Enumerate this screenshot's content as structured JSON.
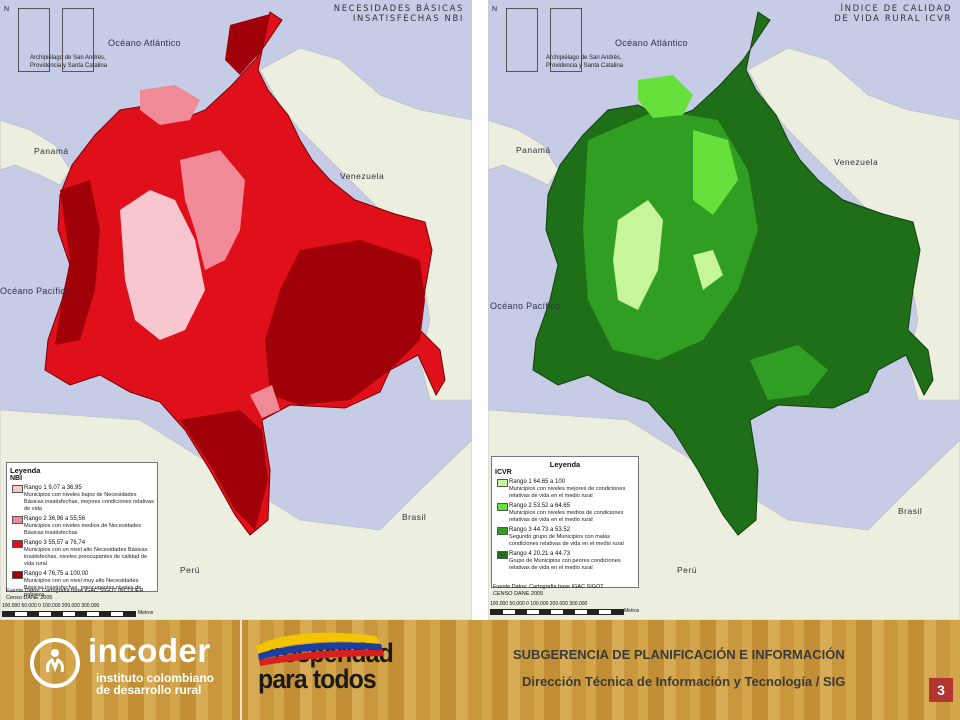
{
  "maps": [
    {
      "id": "nbi",
      "title": "NECESIDADES BÁSICAS\nINSATISFECHAS NBI",
      "inset_caption": "Archipiélago de San Andrés,\nProvidencia y Santa Catalina",
      "ocean_atlantic": "Océano Atlántico",
      "ocean_pacific": "Océano Pacífico",
      "country_panama": "Panamá",
      "country_venezuela": "Venezuela",
      "country_brasil": "Brasil",
      "country_peru": "Perú",
      "north_symbol": "N",
      "legend": {
        "title": "Leyenda",
        "subtitle": "NBI",
        "items": [
          {
            "range": "Rango 1  9,07 a 36,95",
            "desc": "Municipios con niveles bajos de Necesidades Básicas insatisfechas, mejores condiciones relativas de vida",
            "color": "#f7c6ce"
          },
          {
            "range": "Rango 2  36,96 a 55,56",
            "desc": "Municipios con niveles medios de Necesidades Básicas insatisfechas",
            "color": "#f08a96"
          },
          {
            "range": "Rango 3  55,57 a 76,74",
            "desc": "Municipios con un nivel alto Necesidades Básicas insatisfechas, niveles preocupantes de calidad de vida rural",
            "color": "#e0101a"
          },
          {
            "range": "Rango 4  76,75 a 100,00",
            "desc": "Municipios con un nivel muy alto Necesidades Básicas insatisfechas,  preocupantes niveles de pobreza",
            "color": "#a00008"
          }
        ]
      },
      "source": "Fuente Datos: Cartografía base IGAC SIGOT INCODER\nCenso DANE 2005",
      "scale_ticks": "100.000  50.000     0          100.000        200.000           300.000",
      "scale_units": "Metros",
      "palette": {
        "light": "#f7c6ce",
        "mid": "#f08a96",
        "high": "#e0101a",
        "dark": "#a00008"
      }
    },
    {
      "id": "icvr",
      "title": "ÍNDICE DE CALIDAD\nDE VIDA RURAL ICVR",
      "inset_caption": "Archipiélago de San Andrés,\nProvidencia y Santa Catalina",
      "ocean_atlantic": "Océano Atlántico",
      "ocean_pacific": "Océano Pacífico",
      "country_panama": "Panamá",
      "country_venezuela": "Venezuela",
      "country_brasil": "Brasil",
      "country_peru": "Perú",
      "north_symbol": "N",
      "legend": {
        "title": "Leyenda",
        "subtitle": "ICVR",
        "items": [
          {
            "range": "Rango 1  64.65 a 100",
            "desc": "Municipios con niveles mejores de condiciones relativas de vida en el medio rural",
            "color": "#c6f59a"
          },
          {
            "range": "Rango 2  53.52 a 64.65",
            "desc": "Municipios con niveles medios de condiciones relativas de vida en el medio rural",
            "color": "#66e03a"
          },
          {
            "range": "Rango 3  44.73 a 53.52",
            "desc": "Segundo grupo de Municipios con malas condiciones relativas de vida en el medio rural",
            "color": "#2f9e22"
          },
          {
            "range": "Rango 4  20.21 a 44.73",
            "desc": "Grupo de Municipios con peores condiciones relativas de vida en el medio rural",
            "color": "#1f6e18"
          }
        ]
      },
      "source": "Fuente Datos: Cartografía base IGAC SIGOT\nCENSO DANE 2005",
      "scale_ticks": "100.000  50.000     0          100.000        200.000           300.000",
      "scale_units": "Metros",
      "palette": {
        "light": "#c6f59a",
        "mid": "#66e03a",
        "high": "#2f9e22",
        "dark": "#1f6e18"
      }
    }
  ],
  "footer": {
    "org_name": "incoder",
    "org_tagline": "instituto colombiano\nde desarrollo rural",
    "slogan": "Prosperidad\npara todos",
    "subgerencia": "SUBGERENCIA DE PLANIFICACIÓN E INFORMACIÓN",
    "direccion": "Dirección Técnica de Información y Tecnología / SIG",
    "page_number": "3"
  }
}
